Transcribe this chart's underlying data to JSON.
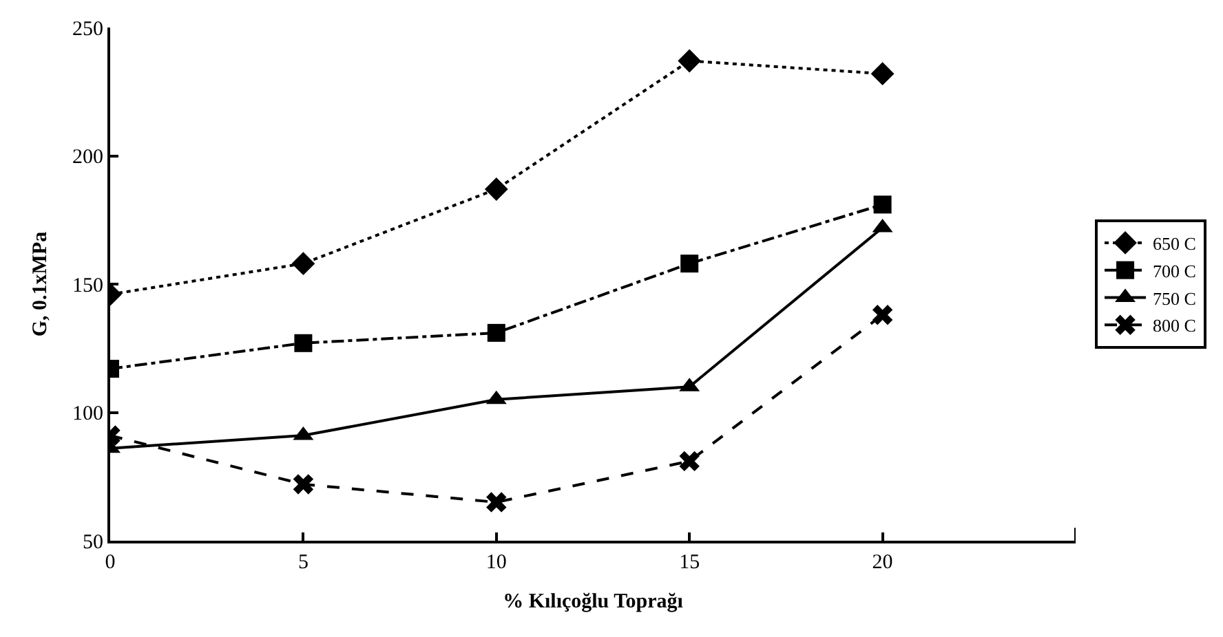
{
  "chart_data": {
    "type": "line",
    "xlabel": "% Kılıçoğlu Toprağı",
    "ylabel": "G, 0.1xMPa",
    "x": [
      0,
      5,
      10,
      15,
      20
    ],
    "xlim": [
      0,
      25
    ],
    "xticks": [
      0,
      5,
      10,
      15,
      20,
      {
        "value": 25,
        "label": null
      }
    ],
    "ylim": [
      50,
      250
    ],
    "yticks": [
      50,
      100,
      150,
      200,
      250
    ],
    "legend": "right",
    "series": [
      {
        "name": "650 C",
        "color": "#000000",
        "marker": "diamond",
        "line_style": "dotted",
        "values": [
          146,
          158,
          187,
          237,
          232
        ]
      },
      {
        "name": "700 C",
        "color": "#000000",
        "marker": "square",
        "line_style": "dashdot",
        "values": [
          117,
          127,
          131,
          158,
          181
        ]
      },
      {
        "name": "750 C",
        "color": "#000000",
        "marker": "triangle",
        "line_style": "solid",
        "values": [
          86,
          91,
          105,
          110,
          172
        ]
      },
      {
        "name": "800 C",
        "color": "#000000",
        "marker": "cross",
        "line_style": "dashed",
        "values": [
          91,
          72,
          65,
          81,
          138
        ]
      }
    ]
  }
}
